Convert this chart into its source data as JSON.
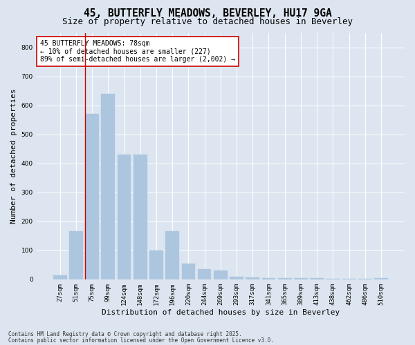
{
  "title1": "45, BUTTERFLY MEADOWS, BEVERLEY, HU17 9GA",
  "title2": "Size of property relative to detached houses in Beverley",
  "xlabel": "Distribution of detached houses by size in Beverley",
  "ylabel": "Number of detached properties",
  "categories": [
    "27sqm",
    "51sqm",
    "75sqm",
    "99sqm",
    "124sqm",
    "148sqm",
    "172sqm",
    "196sqm",
    "220sqm",
    "244sqm",
    "269sqm",
    "293sqm",
    "317sqm",
    "341sqm",
    "365sqm",
    "389sqm",
    "413sqm",
    "438sqm",
    "462sqm",
    "486sqm",
    "510sqm"
  ],
  "values": [
    15,
    165,
    570,
    640,
    430,
    430,
    100,
    165,
    55,
    35,
    30,
    10,
    7,
    5,
    5,
    4,
    4,
    3,
    2,
    2,
    4
  ],
  "bar_color": "#adc6e0",
  "bar_edgecolor": "#adc6e0",
  "vline_color": "#cc0000",
  "vline_bin": 2,
  "annotation_text": "45 BUTTERFLY MEADOWS: 78sqm\n← 10% of detached houses are smaller (227)\n89% of semi-detached houses are larger (2,002) →",
  "annotation_box_facecolor": "#ffffff",
  "annotation_box_edgecolor": "#cc0000",
  "bg_color": "#dde6f0",
  "plot_bg_color": "#dde6f0",
  "ylim": [
    0,
    850
  ],
  "yticks": [
    0,
    100,
    200,
    300,
    400,
    500,
    600,
    700,
    800
  ],
  "footer1": "Contains HM Land Registry data © Crown copyright and database right 2025.",
  "footer2": "Contains public sector information licensed under the Open Government Licence v3.0.",
  "title_fontsize": 10.5,
  "subtitle_fontsize": 9,
  "tick_fontsize": 6.5,
  "label_fontsize": 8,
  "annotation_fontsize": 7,
  "footer_fontsize": 5.5
}
